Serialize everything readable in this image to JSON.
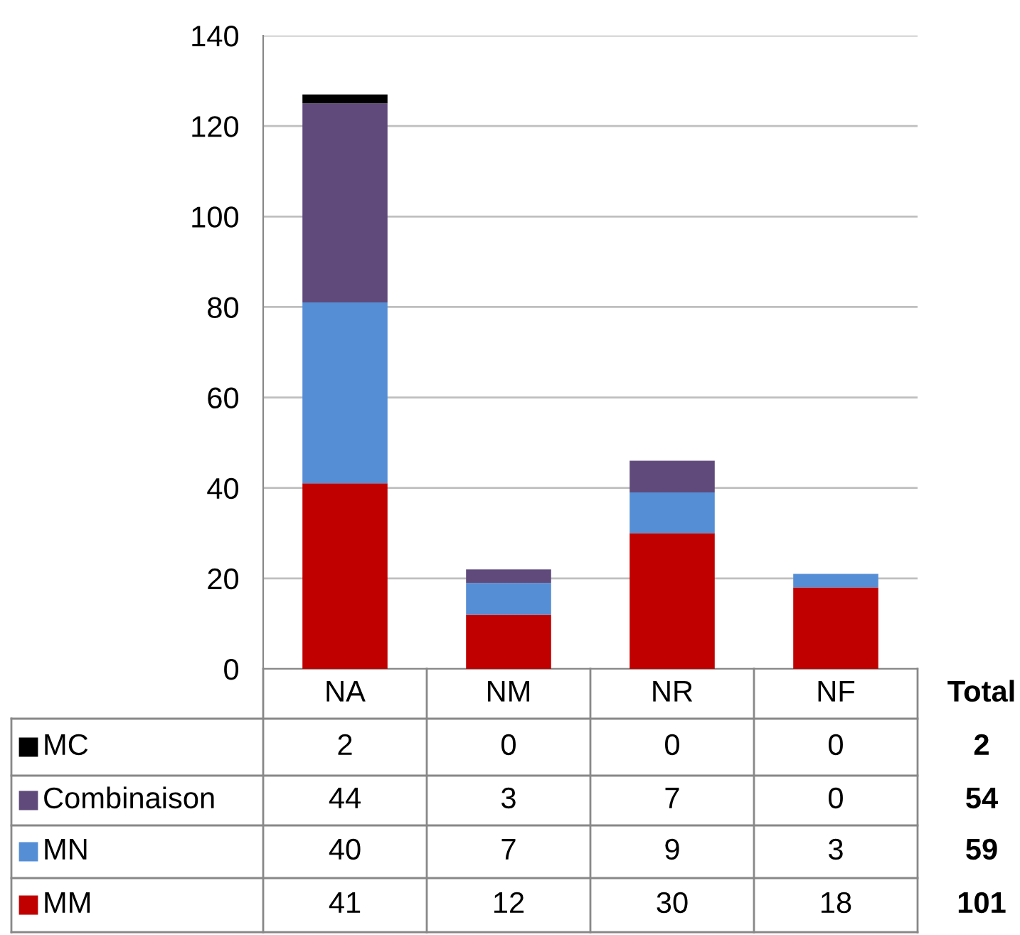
{
  "chart_data": {
    "type": "bar",
    "stacked": true,
    "categories": [
      "NA",
      "NM",
      "NR",
      "NF"
    ],
    "series": [
      {
        "name": "MM",
        "color": "#c00000",
        "values": [
          41,
          12,
          30,
          18
        ]
      },
      {
        "name": "MN",
        "color": "#558ed5",
        "values": [
          40,
          7,
          9,
          3
        ]
      },
      {
        "name": "Combinaison",
        "color": "#604a7b",
        "values": [
          44,
          3,
          7,
          0
        ]
      },
      {
        "name": "MC",
        "color": "#000000",
        "values": [
          2,
          0,
          0,
          0
        ]
      }
    ],
    "ylim": [
      0,
      140
    ],
    "yticks": [
      0,
      20,
      40,
      60,
      80,
      100,
      120,
      140
    ],
    "grid": "y",
    "legend": "bottom",
    "data_labels": true,
    "annotations": [
      "Total",
      "2",
      "54",
      "59",
      "101"
    ]
  }
}
